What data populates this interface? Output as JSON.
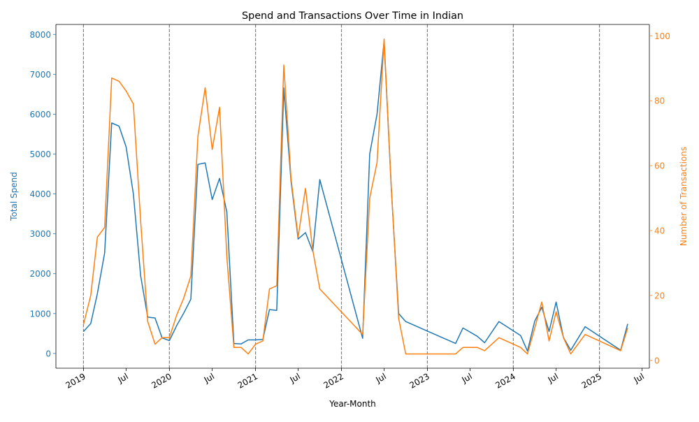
{
  "chart_data": {
    "type": "line",
    "title": "Spend and Transactions Over Time in Indian",
    "xlabel": "Year-Month",
    "ylabel_left": "Total Spend",
    "ylabel_right": "Number of Transactions",
    "ylim_left": [
      -370,
      8250
    ],
    "ylim_right": [
      -2.4,
      103.5
    ],
    "xlim": [
      "2018-09-06",
      "2025-08-01"
    ],
    "left_ticks": [
      0,
      1000,
      2000,
      3000,
      4000,
      5000,
      6000,
      7000,
      8000
    ],
    "right_ticks": [
      0,
      20,
      40,
      60,
      80,
      100
    ],
    "x_ticks": [
      {
        "date": "2019-01-01",
        "label": "2019"
      },
      {
        "date": "2019-07-01",
        "label": "Jul"
      },
      {
        "date": "2020-01-01",
        "label": "2020"
      },
      {
        "date": "2020-07-01",
        "label": "Jul"
      },
      {
        "date": "2021-01-01",
        "label": "2021"
      },
      {
        "date": "2021-07-01",
        "label": "Jul"
      },
      {
        "date": "2022-01-01",
        "label": "2022"
      },
      {
        "date": "2022-07-01",
        "label": "Jul"
      },
      {
        "date": "2023-01-01",
        "label": "2023"
      },
      {
        "date": "2023-07-01",
        "label": "Jul"
      },
      {
        "date": "2024-01-01",
        "label": "2024"
      },
      {
        "date": "2024-07-01",
        "label": "Jul"
      },
      {
        "date": "2025-01-01",
        "label": "2025"
      },
      {
        "date": "2025-07-01",
        "label": "Jul"
      }
    ],
    "year_lines": [
      "2019-01-01",
      "2020-01-01",
      "2021-01-01",
      "2022-01-01",
      "2023-01-01",
      "2024-01-01",
      "2025-01-01"
    ],
    "colors": {
      "spend": "#1f77b4",
      "transactions": "#ff7f0e",
      "vline": "#808080"
    },
    "series": [
      {
        "name": "Total Spend",
        "axis": "left",
        "points": [
          [
            "2019-01-01",
            550
          ],
          [
            "2019-02-01",
            750
          ],
          [
            "2019-03-01",
            1500
          ],
          [
            "2019-04-01",
            2520
          ],
          [
            "2019-05-01",
            5780
          ],
          [
            "2019-06-01",
            5700
          ],
          [
            "2019-07-01",
            5180
          ],
          [
            "2019-08-01",
            4000
          ],
          [
            "2019-09-01",
            1950
          ],
          [
            "2019-10-01",
            910
          ],
          [
            "2019-11-01",
            890
          ],
          [
            "2019-12-01",
            390
          ],
          [
            "2020-01-01",
            320
          ],
          [
            "2020-02-01",
            700
          ],
          [
            "2020-03-01",
            1000
          ],
          [
            "2020-04-01",
            1360
          ],
          [
            "2020-05-01",
            4740
          ],
          [
            "2020-06-01",
            4780
          ],
          [
            "2020-07-01",
            3860
          ],
          [
            "2020-08-01",
            4390
          ],
          [
            "2020-09-01",
            3550
          ],
          [
            "2020-10-01",
            250
          ],
          [
            "2020-11-01",
            240
          ],
          [
            "2020-12-01",
            340
          ],
          [
            "2021-01-01",
            340
          ],
          [
            "2021-02-01",
            350
          ],
          [
            "2021-03-01",
            1100
          ],
          [
            "2021-04-01",
            1080
          ],
          [
            "2021-05-01",
            6660
          ],
          [
            "2021-06-01",
            4310
          ],
          [
            "2021-07-01",
            2870
          ],
          [
            "2021-08-01",
            3030
          ],
          [
            "2021-09-01",
            2560
          ],
          [
            "2021-10-01",
            4360
          ],
          [
            "2022-04-01",
            380
          ],
          [
            "2022-05-01",
            5000
          ],
          [
            "2022-06-01",
            6000
          ],
          [
            "2022-07-01",
            7830
          ],
          [
            "2022-08-01",
            4100
          ],
          [
            "2022-09-01",
            1000
          ],
          [
            "2022-10-01",
            800
          ],
          [
            "2023-05-01",
            250
          ],
          [
            "2023-06-01",
            640
          ],
          [
            "2023-08-01",
            430
          ],
          [
            "2023-09-01",
            270
          ],
          [
            "2023-11-01",
            800
          ],
          [
            "2024-02-01",
            450
          ],
          [
            "2024-03-01",
            60
          ],
          [
            "2024-04-01",
            810
          ],
          [
            "2024-05-01",
            1160
          ],
          [
            "2024-06-01",
            550
          ],
          [
            "2024-07-01",
            1290
          ],
          [
            "2024-08-01",
            400
          ],
          [
            "2024-09-01",
            80
          ],
          [
            "2024-11-01",
            670
          ],
          [
            "2025-04-01",
            80
          ],
          [
            "2025-05-01",
            740
          ]
        ]
      },
      {
        "name": "Number of Transactions",
        "axis": "right",
        "points": [
          [
            "2019-01-01",
            11
          ],
          [
            "2019-02-01",
            20
          ],
          [
            "2019-03-01",
            38
          ],
          [
            "2019-04-01",
            41
          ],
          [
            "2019-05-01",
            87
          ],
          [
            "2019-06-01",
            86
          ],
          [
            "2019-07-01",
            83
          ],
          [
            "2019-08-01",
            79
          ],
          [
            "2019-09-01",
            43
          ],
          [
            "2019-10-01",
            12
          ],
          [
            "2019-11-01",
            5
          ],
          [
            "2019-12-01",
            7
          ],
          [
            "2020-01-01",
            7
          ],
          [
            "2020-02-01",
            14
          ],
          [
            "2020-03-01",
            19
          ],
          [
            "2020-04-01",
            26
          ],
          [
            "2020-05-01",
            69
          ],
          [
            "2020-06-01",
            84
          ],
          [
            "2020-07-01",
            65
          ],
          [
            "2020-08-01",
            78
          ],
          [
            "2020-09-01",
            32
          ],
          [
            "2020-10-01",
            4
          ],
          [
            "2020-11-01",
            4
          ],
          [
            "2020-12-01",
            2
          ],
          [
            "2021-01-01",
            5
          ],
          [
            "2021-02-01",
            6
          ],
          [
            "2021-03-01",
            22
          ],
          [
            "2021-04-01",
            23
          ],
          [
            "2021-05-01",
            91
          ],
          [
            "2021-06-01",
            56
          ],
          [
            "2021-07-01",
            38
          ],
          [
            "2021-08-01",
            53
          ],
          [
            "2021-09-01",
            34
          ],
          [
            "2021-10-01",
            22
          ],
          [
            "2022-04-01",
            8
          ],
          [
            "2022-05-01",
            50
          ],
          [
            "2022-06-01",
            61
          ],
          [
            "2022-07-01",
            99
          ],
          [
            "2022-08-01",
            53
          ],
          [
            "2022-09-01",
            13
          ],
          [
            "2022-10-01",
            2
          ],
          [
            "2023-05-01",
            2
          ],
          [
            "2023-06-01",
            4
          ],
          [
            "2023-08-01",
            4
          ],
          [
            "2023-09-01",
            3
          ],
          [
            "2023-11-01",
            7
          ],
          [
            "2024-02-01",
            4
          ],
          [
            "2024-03-01",
            2
          ],
          [
            "2024-04-01",
            10
          ],
          [
            "2024-05-01",
            18
          ],
          [
            "2024-06-01",
            6
          ],
          [
            "2024-07-01",
            15
          ],
          [
            "2024-08-01",
            7
          ],
          [
            "2024-09-01",
            2
          ],
          [
            "2024-11-01",
            8
          ],
          [
            "2025-04-01",
            3
          ],
          [
            "2025-05-01",
            10
          ]
        ]
      }
    ],
    "grid": false,
    "legend": "none"
  }
}
